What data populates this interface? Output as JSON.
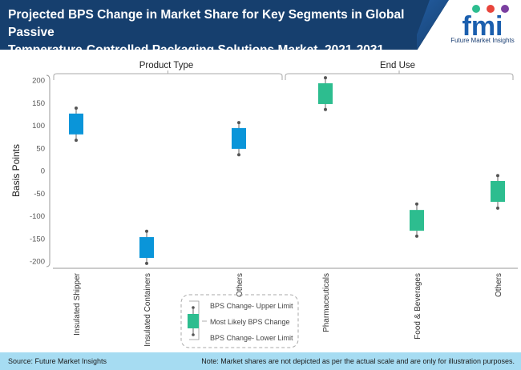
{
  "header": {
    "title_line1": "Projected BPS Change in Market Share for Key Segments in Global Passive",
    "title_line2": "Temperature-Controlled Packaging Solutions Market, 2021-2031",
    "logo_letters": "fmi",
    "logo_caption": "Future Market Insights"
  },
  "footer": {
    "source": "Source: Future Market Insights",
    "note": "Note: Market shares are not depicted as per the actual scale and are only for illustration purposes."
  },
  "colors": {
    "header_bg": "#163f6e",
    "product_type": "#0a95d9",
    "end_use": "#2dbd8f",
    "footer_bg": "#a6dcf2"
  },
  "chart_data": {
    "type": "box",
    "title": "Projected BPS Change in Market Share for Key Segments in Global Passive Temperature-Controlled Packaging Solutions Market, 2021-2031",
    "ylabel": "Basis Points",
    "xlabel": "",
    "ylim": [
      -200,
      200
    ],
    "yticks": [
      200,
      150,
      100,
      50,
      0,
      -50,
      -100,
      -150,
      -200
    ],
    "grid": false,
    "groups": [
      {
        "name": "Product Type",
        "color": "#0a95d9",
        "categories": [
          "Insulated Shipper",
          "Insulated Containers",
          "Others"
        ]
      },
      {
        "name": "End Use",
        "color": "#2dbd8f",
        "categories": [
          "Pharmaceuticals",
          "Food & Beverages",
          "Others"
        ]
      }
    ],
    "series": [
      {
        "category": "Insulated Shipper",
        "group": "Product Type",
        "upper": 138,
        "box_high": 126,
        "box_low": 80,
        "lower": 67
      },
      {
        "category": "Insulated Containers",
        "group": "Product Type",
        "upper": -134,
        "box_high": -147,
        "box_low": -193,
        "lower": -205
      },
      {
        "category": "Others",
        "group": "Product Type",
        "upper": 106,
        "box_high": 94,
        "box_low": 48,
        "lower": 35
      },
      {
        "category": "Pharmaceuticals",
        "group": "End Use",
        "upper": 205,
        "box_high": 193,
        "box_low": 147,
        "lower": 135
      },
      {
        "category": "Food & Beverages",
        "group": "End Use",
        "upper": -74,
        "box_high": -87,
        "box_low": -133,
        "lower": -145
      },
      {
        "category": "Others",
        "group": "End Use",
        "upper": -11,
        "box_high": -23,
        "box_low": -69,
        "lower": -83
      }
    ],
    "legend": {
      "position": "bottom-center",
      "items": [
        "BPS Change- Upper Limit",
        "Most Likely BPS Change",
        "BPS Change- Lower Limit"
      ]
    }
  }
}
